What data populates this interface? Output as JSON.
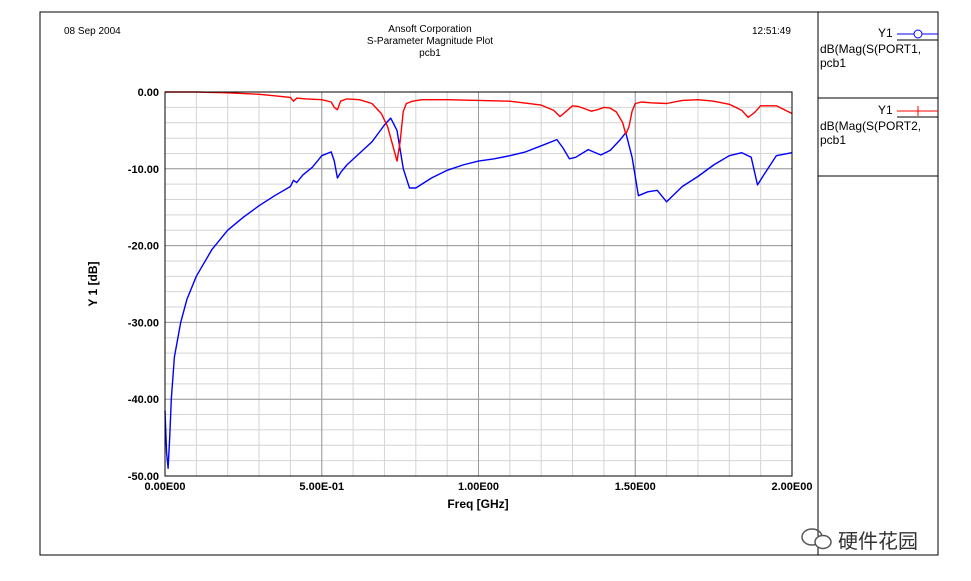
{
  "header": {
    "date": "08 Sep 2004",
    "company": "Ansoft Corporation",
    "plot_title": "S-Parameter Magnitude Plot",
    "design": "pcb1",
    "time": "12:51:49"
  },
  "legend": [
    {
      "name": "Y1",
      "label_line1": "dB(Mag(S(PORT1,",
      "label_line2": "pcb1",
      "marker": "circle",
      "color": "#0000ff"
    },
    {
      "name": "Y1",
      "label_line1": "dB(Mag(S(PORT2,",
      "label_line2": "pcb1",
      "marker": "plus",
      "color": "#ff0000"
    }
  ],
  "watermark": "硬件花园",
  "chart_data": {
    "type": "line",
    "xlabel": "Freq [GHz]",
    "ylabel": "Y 1  [dB]",
    "xlim": [
      0,
      2.0
    ],
    "ylim": [
      -50,
      0
    ],
    "x_ticks": [
      0,
      0.5,
      1.0,
      1.5,
      2.0
    ],
    "x_tick_labels": [
      "0.00E00",
      "5.00E-01",
      "1.00E00",
      "1.50E00",
      "2.00E00"
    ],
    "y_ticks": [
      0,
      -10,
      -20,
      -30,
      -40,
      -50
    ],
    "y_tick_labels": [
      "0.00",
      "-10.00",
      "-20.00",
      "-30.00",
      "-40.00",
      "-50.00"
    ],
    "grid": true,
    "series": [
      {
        "name": "dB(Mag(S(PORT1,",
        "color": "#0000ff",
        "x": [
          0.0,
          0.005,
          0.01,
          0.015,
          0.02,
          0.03,
          0.05,
          0.07,
          0.1,
          0.15,
          0.2,
          0.25,
          0.3,
          0.35,
          0.4,
          0.41,
          0.42,
          0.44,
          0.47,
          0.5,
          0.53,
          0.54,
          0.55,
          0.56,
          0.58,
          0.62,
          0.66,
          0.7,
          0.72,
          0.74,
          0.76,
          0.78,
          0.8,
          0.85,
          0.9,
          0.95,
          1.0,
          1.05,
          1.1,
          1.15,
          1.2,
          1.25,
          1.27,
          1.29,
          1.31,
          1.35,
          1.39,
          1.42,
          1.45,
          1.47,
          1.49,
          1.51,
          1.54,
          1.57,
          1.6,
          1.65,
          1.7,
          1.75,
          1.8,
          1.84,
          1.87,
          1.89,
          1.91,
          1.95,
          2.0
        ],
        "y": [
          -41.5,
          -47.0,
          -49.0,
          -45.0,
          -40.0,
          -34.5,
          -30.0,
          -27.0,
          -24.0,
          -20.5,
          -18.0,
          -16.3,
          -14.8,
          -13.5,
          -12.3,
          -11.5,
          -11.8,
          -10.8,
          -9.8,
          -8.3,
          -7.8,
          -9.0,
          -11.2,
          -10.5,
          -9.5,
          -8.0,
          -6.5,
          -4.3,
          -3.4,
          -5.0,
          -10.0,
          -12.5,
          -12.5,
          -11.2,
          -10.2,
          -9.5,
          -9.0,
          -8.7,
          -8.3,
          -7.8,
          -7.0,
          -6.2,
          -7.3,
          -8.7,
          -8.5,
          -7.5,
          -8.2,
          -7.6,
          -6.3,
          -5.3,
          -8.5,
          -13.5,
          -13.0,
          -12.8,
          -14.3,
          -12.3,
          -11.0,
          -9.5,
          -8.3,
          -7.9,
          -8.5,
          -12.1,
          -10.8,
          -8.3,
          -7.9
        ]
      },
      {
        "name": "dB(Mag(S(PORT2,",
        "color": "#ff0000",
        "x": [
          0.0,
          0.1,
          0.2,
          0.3,
          0.35,
          0.4,
          0.41,
          0.42,
          0.45,
          0.5,
          0.53,
          0.54,
          0.55,
          0.56,
          0.58,
          0.62,
          0.66,
          0.69,
          0.71,
          0.73,
          0.74,
          0.75,
          0.76,
          0.77,
          0.79,
          0.82,
          0.9,
          1.0,
          1.1,
          1.2,
          1.24,
          1.26,
          1.28,
          1.3,
          1.32,
          1.34,
          1.36,
          1.38,
          1.4,
          1.42,
          1.44,
          1.46,
          1.47,
          1.48,
          1.49,
          1.5,
          1.52,
          1.55,
          1.6,
          1.65,
          1.7,
          1.75,
          1.8,
          1.84,
          1.86,
          1.88,
          1.9,
          1.95,
          2.0
        ],
        "y": [
          0.0,
          0.0,
          -0.1,
          -0.3,
          -0.5,
          -0.7,
          -1.2,
          -0.8,
          -0.9,
          -1.0,
          -1.3,
          -2.0,
          -2.3,
          -1.2,
          -0.9,
          -1.0,
          -1.5,
          -2.8,
          -4.5,
          -7.5,
          -9.0,
          -6.5,
          -2.5,
          -1.5,
          -1.2,
          -1.0,
          -1.0,
          -1.1,
          -1.2,
          -1.7,
          -2.4,
          -3.2,
          -2.5,
          -1.8,
          -1.9,
          -2.2,
          -2.5,
          -2.3,
          -2.0,
          -2.1,
          -2.6,
          -4.0,
          -5.5,
          -4.5,
          -2.5,
          -1.5,
          -1.3,
          -1.4,
          -1.5,
          -1.1,
          -1.0,
          -1.2,
          -1.6,
          -2.4,
          -3.3,
          -2.7,
          -1.8,
          -1.8,
          -2.8
        ]
      }
    ]
  }
}
